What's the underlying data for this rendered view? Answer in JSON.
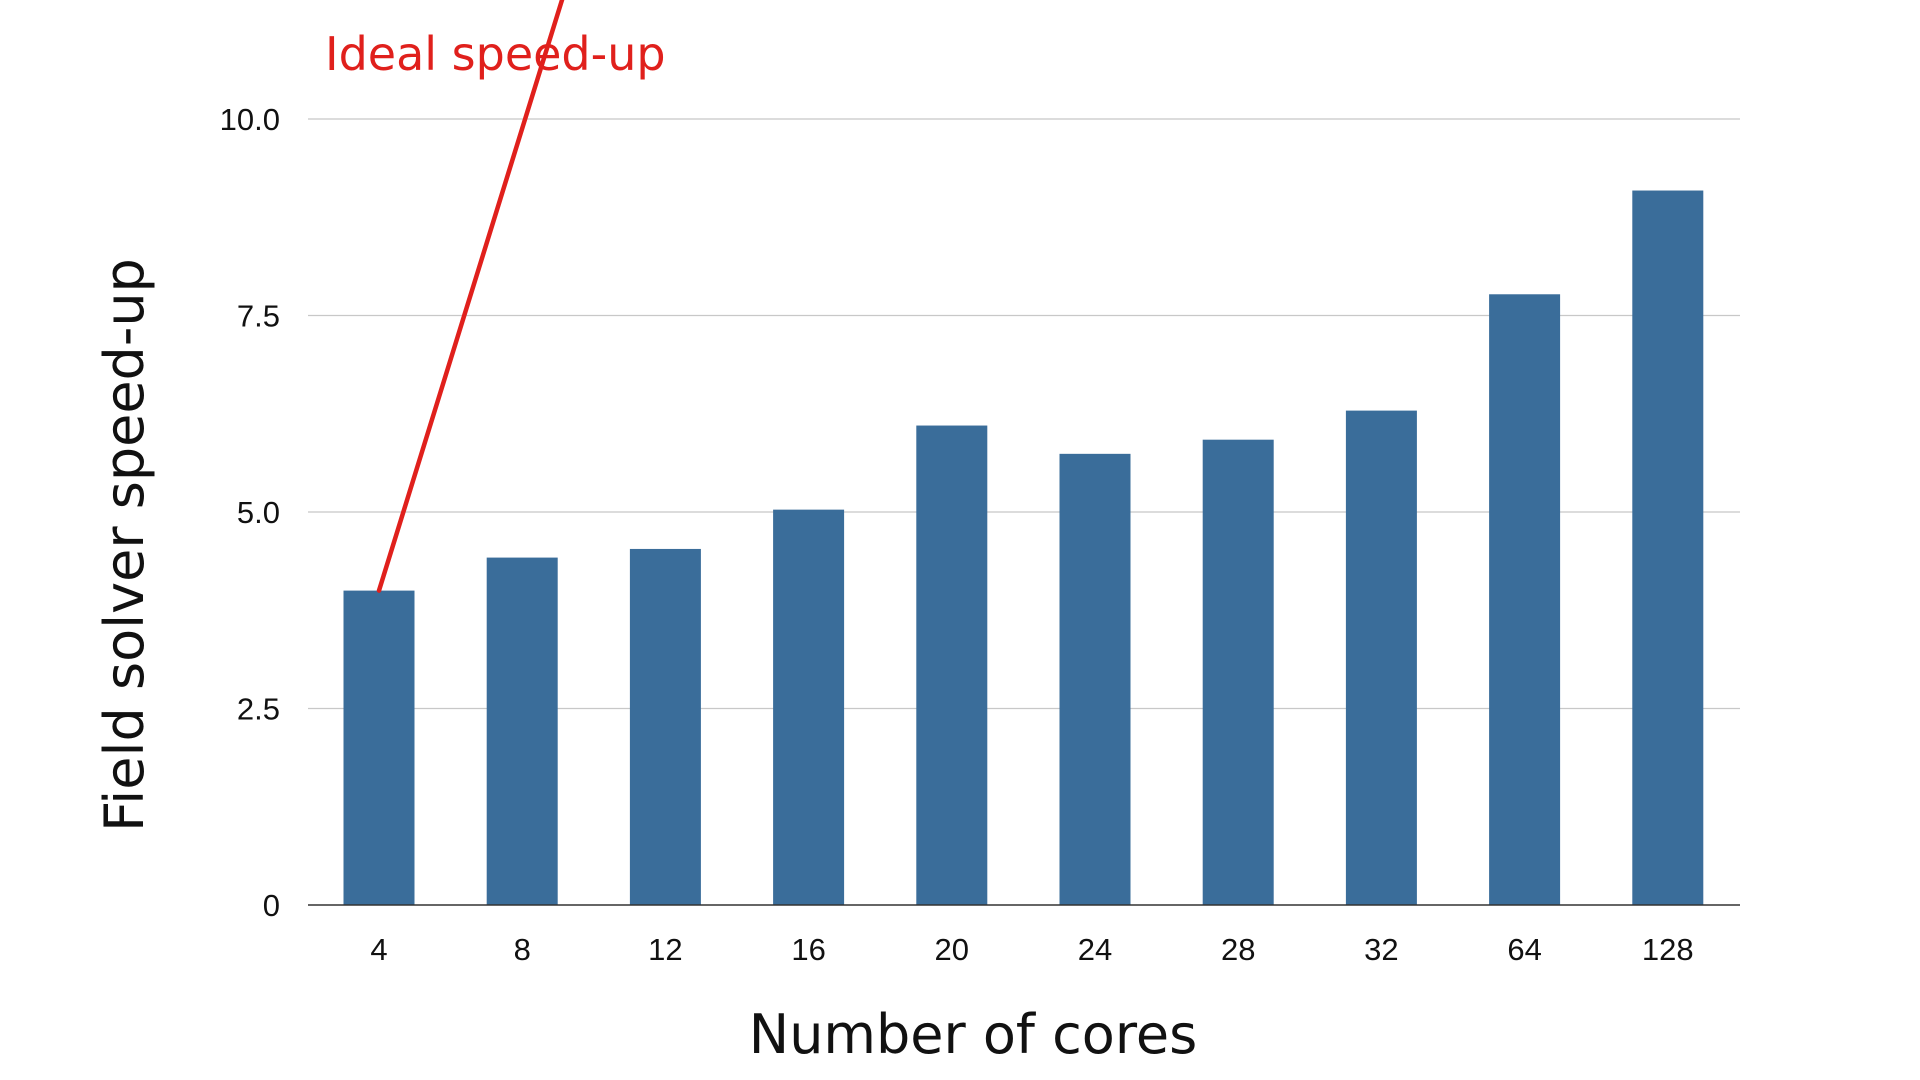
{
  "chart_data": {
    "type": "bar",
    "categories": [
      "4",
      "8",
      "12",
      "16",
      "20",
      "24",
      "28",
      "32",
      "64",
      "128"
    ],
    "values": [
      4.0,
      4.42,
      4.53,
      5.03,
      6.1,
      5.74,
      5.92,
      6.29,
      7.77,
      9.09
    ],
    "xlabel": "Number of cores",
    "ylabel": "Field solver speed-up",
    "ylim": [
      0,
      10.0
    ],
    "yticks": [
      0,
      2.5,
      5.0,
      7.5,
      10.0
    ],
    "ytick_labels": [
      "0",
      "2.5",
      "5.0",
      "7.5",
      "10.0"
    ],
    "grid": true,
    "bar_color": "#3a6d9a",
    "annotation": {
      "text": "Ideal speed-up",
      "color": "#e0201c",
      "line": {
        "from": {
          "category": "4",
          "value": 4.0
        },
        "slope_per_category": 5.88
      }
    }
  }
}
